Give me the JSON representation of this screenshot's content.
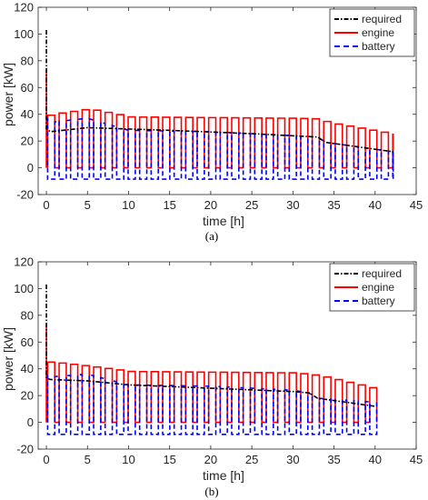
{
  "colors": {
    "required": "#000000",
    "engine": "#ff0000",
    "battery": "#0000ff",
    "axis": "#262626"
  },
  "chart_data": [
    {
      "type": "line",
      "panel_label": "(a)",
      "xlabel": "time [h]",
      "ylabel": "power [kW]",
      "xlim": [
        -1,
        45
      ],
      "ylim": [
        -20,
        120
      ],
      "xticks": [
        0,
        5,
        10,
        15,
        20,
        25,
        30,
        35,
        40,
        45
      ],
      "yticks": [
        -20,
        0,
        20,
        40,
        60,
        80,
        100,
        120
      ],
      "grid": false,
      "legend_position": "top-right",
      "legend": [
        "required",
        "engine",
        "battery"
      ],
      "cycle": {
        "x_start": 0.15,
        "x_end": 42.2,
        "period": 1.4,
        "on_fraction": 0.62,
        "battery_charge_kw": -8.5
      },
      "series": [
        {
          "name": "required",
          "x": [
            0,
            0.5,
            5,
            15,
            25,
            33,
            34,
            42.2
          ],
          "y": [
            29,
            27,
            30,
            28,
            25.5,
            23,
            19,
            12
          ],
          "start_spike": 103
        },
        {
          "name": "engine",
          "x": [
            0,
            0.5,
            5,
            10,
            20,
            30,
            33,
            34,
            42.2
          ],
          "y": [
            39,
            40,
            44,
            38,
            37.5,
            37,
            36.5,
            34,
            25
          ],
          "start_spike": 73
        },
        {
          "name": "battery",
          "x": [
            0,
            0.5,
            5,
            10,
            20,
            30,
            33,
            34,
            42.2
          ],
          "y": [
            37,
            34,
            37,
            28,
            27,
            24,
            23,
            19,
            12
          ]
        }
      ]
    },
    {
      "type": "line",
      "panel_label": "(b)",
      "xlabel": "time [h]",
      "ylabel": "power [kW]",
      "xlim": [
        -1,
        45
      ],
      "ylim": [
        -20,
        120
      ],
      "xticks": [
        0,
        5,
        10,
        15,
        20,
        25,
        30,
        35,
        40,
        45
      ],
      "yticks": [
        -20,
        0,
        20,
        40,
        60,
        80,
        100,
        120
      ],
      "grid": false,
      "legend_position": "top-right",
      "legend": [
        "required",
        "engine",
        "battery"
      ],
      "cycle": {
        "x_start": 0.15,
        "x_end": 40.2,
        "period": 1.4,
        "on_fraction": 0.62,
        "battery_charge_kw": -9
      },
      "series": [
        {
          "name": "required",
          "x": [
            0,
            0.5,
            5,
            10,
            20,
            30,
            32,
            33,
            40
          ],
          "y": [
            33,
            32,
            31,
            28,
            25.5,
            23,
            22,
            18,
            12
          ],
          "start_spike": 103
        },
        {
          "name": "engine",
          "x": [
            0,
            0.5,
            5,
            10,
            20,
            30,
            33,
            40
          ],
          "y": [
            45,
            45,
            42,
            38,
            37.5,
            37,
            35,
            25
          ],
          "start_spike": 73
        },
        {
          "name": "battery",
          "x": [
            0,
            0.5,
            5,
            10,
            20,
            30,
            32,
            33,
            40
          ],
          "y": [
            35,
            34,
            36,
            28,
            27,
            24,
            22,
            18,
            15
          ]
        }
      ]
    }
  ]
}
